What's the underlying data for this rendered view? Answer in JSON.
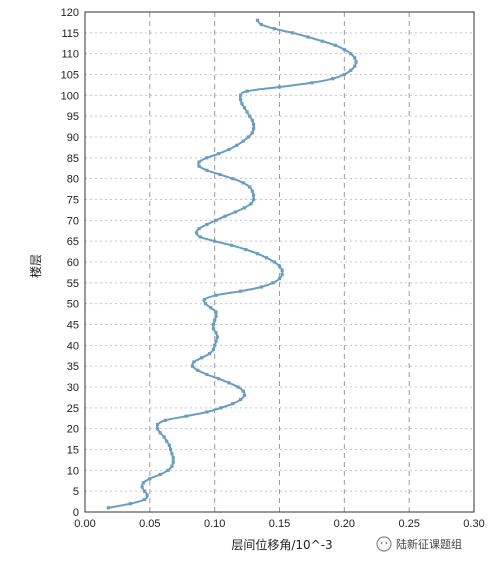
{
  "chart_data": {
    "type": "line",
    "xlabel": "层间位移角/10^-3",
    "ylabel": "楼层",
    "xlim": [
      0,
      0.3
    ],
    "ylim": [
      0,
      120
    ],
    "xticks": [
      "0.00",
      "0.05",
      "0.10",
      "0.15",
      "0.20",
      "0.25",
      "0.30"
    ],
    "yticks": [
      "0",
      "5",
      "10",
      "15",
      "20",
      "25",
      "30",
      "35",
      "40",
      "45",
      "50",
      "55",
      "60",
      "65",
      "70",
      "75",
      "80",
      "85",
      "90",
      "95",
      "100",
      "105",
      "110",
      "115",
      "120"
    ],
    "grid": {
      "vertical": "dashed",
      "horizontal": "dotted"
    },
    "series": [
      {
        "color": "#6a9ec0",
        "points": [
          [
            0.018,
            1
          ],
          [
            0.035,
            2
          ],
          [
            0.046,
            3
          ],
          [
            0.048,
            4
          ],
          [
            0.046,
            5
          ],
          [
            0.044,
            6
          ],
          [
            0.045,
            7
          ],
          [
            0.05,
            8
          ],
          [
            0.058,
            9
          ],
          [
            0.064,
            10
          ],
          [
            0.067,
            11
          ],
          [
            0.068,
            12
          ],
          [
            0.068,
            13
          ],
          [
            0.067,
            14
          ],
          [
            0.066,
            15
          ],
          [
            0.065,
            16
          ],
          [
            0.063,
            17
          ],
          [
            0.061,
            18
          ],
          [
            0.058,
            19
          ],
          [
            0.056,
            20
          ],
          [
            0.056,
            21
          ],
          [
            0.062,
            22
          ],
          [
            0.078,
            23
          ],
          [
            0.094,
            24
          ],
          [
            0.105,
            25
          ],
          [
            0.114,
            26
          ],
          [
            0.12,
            27
          ],
          [
            0.123,
            28
          ],
          [
            0.122,
            29
          ],
          [
            0.118,
            30
          ],
          [
            0.111,
            31
          ],
          [
            0.103,
            32
          ],
          [
            0.094,
            33
          ],
          [
            0.087,
            34
          ],
          [
            0.083,
            35
          ],
          [
            0.084,
            36
          ],
          [
            0.09,
            37
          ],
          [
            0.096,
            38
          ],
          [
            0.099,
            39
          ],
          [
            0.1,
            40
          ],
          [
            0.101,
            41
          ],
          [
            0.102,
            42
          ],
          [
            0.101,
            43
          ],
          [
            0.099,
            44
          ],
          [
            0.099,
            45
          ],
          [
            0.1,
            46
          ],
          [
            0.101,
            47
          ],
          [
            0.101,
            48
          ],
          [
            0.097,
            49
          ],
          [
            0.093,
            50
          ],
          [
            0.092,
            51
          ],
          [
            0.101,
            52
          ],
          [
            0.12,
            53
          ],
          [
            0.136,
            54
          ],
          [
            0.145,
            55
          ],
          [
            0.15,
            56
          ],
          [
            0.152,
            57
          ],
          [
            0.152,
            58
          ],
          [
            0.15,
            59
          ],
          [
            0.146,
            60
          ],
          [
            0.14,
            61
          ],
          [
            0.133,
            62
          ],
          [
            0.124,
            63
          ],
          [
            0.113,
            64
          ],
          [
            0.1,
            65
          ],
          [
            0.089,
            66
          ],
          [
            0.086,
            67
          ],
          [
            0.088,
            68
          ],
          [
            0.094,
            69
          ],
          [
            0.101,
            70
          ],
          [
            0.108,
            71
          ],
          [
            0.116,
            72
          ],
          [
            0.123,
            73
          ],
          [
            0.128,
            74
          ],
          [
            0.13,
            75
          ],
          [
            0.13,
            76
          ],
          [
            0.129,
            77
          ],
          [
            0.127,
            78
          ],
          [
            0.122,
            79
          ],
          [
            0.114,
            80
          ],
          [
            0.104,
            81
          ],
          [
            0.094,
            82
          ],
          [
            0.088,
            83
          ],
          [
            0.088,
            84
          ],
          [
            0.094,
            85
          ],
          [
            0.103,
            86
          ],
          [
            0.111,
            87
          ],
          [
            0.117,
            88
          ],
          [
            0.122,
            89
          ],
          [
            0.126,
            90
          ],
          [
            0.129,
            91
          ],
          [
            0.13,
            92
          ],
          [
            0.13,
            93
          ],
          [
            0.129,
            94
          ],
          [
            0.127,
            95
          ],
          [
            0.125,
            96
          ],
          [
            0.123,
            97
          ],
          [
            0.121,
            98
          ],
          [
            0.12,
            99
          ],
          [
            0.12,
            100
          ],
          [
            0.125,
            101
          ],
          [
            0.15,
            102
          ],
          [
            0.175,
            103
          ],
          [
            0.191,
            104
          ],
          [
            0.2,
            105
          ],
          [
            0.205,
            106
          ],
          [
            0.208,
            107
          ],
          [
            0.209,
            108
          ],
          [
            0.208,
            109
          ],
          [
            0.205,
            110
          ],
          [
            0.2,
            111
          ],
          [
            0.193,
            112
          ],
          [
            0.183,
            113
          ],
          [
            0.172,
            114
          ],
          [
            0.16,
            115
          ],
          [
            0.146,
            116
          ],
          [
            0.136,
            117
          ],
          [
            0.133,
            118
          ]
        ]
      }
    ]
  },
  "watermark": {
    "text": "陆新征课题组"
  }
}
